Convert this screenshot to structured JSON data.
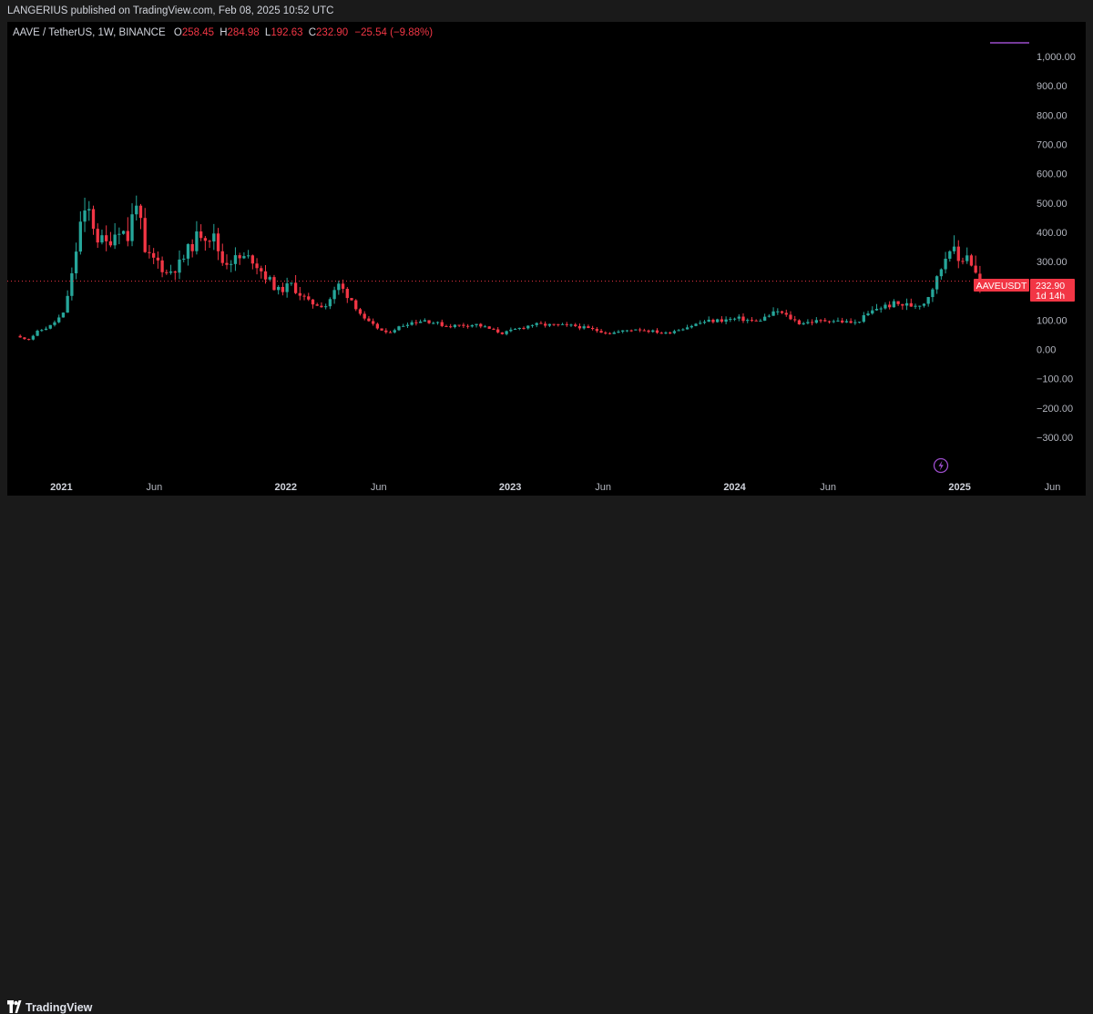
{
  "header": {
    "publish_line": "LANGERIUS published on TradingView.com, Feb 08, 2025 10:52 UTC"
  },
  "legend": {
    "symbol": "AAVE / TetherUS, 1W, BINANCE",
    "o_label": "O",
    "o_value": "258.45",
    "h_label": "H",
    "h_value": "284.98",
    "l_label": "L",
    "l_value": "192.63",
    "c_label": "C",
    "c_value": "232.90",
    "change": "−25.54 (−9.88%)"
  },
  "price_tag": {
    "symbol": "AAVEUSDT",
    "price": "232.90",
    "countdown": "1d 14h"
  },
  "footer": {
    "brand": "TradingView"
  },
  "colors": {
    "up": "#26a69a",
    "down": "#f23645",
    "axis_text": "#b2b5be",
    "guide": "#9c4dcc"
  },
  "icons": {
    "logo": "tradingview-logo-icon",
    "lightning": "lightning-icon"
  },
  "chart_data": {
    "type": "candlestick",
    "title": "AAVE / TetherUS, 1W, BINANCE",
    "xlabel": "",
    "ylabel": "",
    "y_scale": "linear",
    "ylim": [
      -350,
      1050
    ],
    "x_range": [
      "2020-10-05",
      "2025-07-25"
    ],
    "grid": false,
    "y_ticks": [
      {
        "value": 1000,
        "label": "1,000.00"
      },
      {
        "value": 900,
        "label": "900.00"
      },
      {
        "value": 800,
        "label": "800.00"
      },
      {
        "value": 700,
        "label": "700.00"
      },
      {
        "value": 600,
        "label": "600.00"
      },
      {
        "value": 500,
        "label": "500.00"
      },
      {
        "value": 400,
        "label": "400.00"
      },
      {
        "value": 300,
        "label": "300.00"
      },
      {
        "value": 100,
        "label": "100.00"
      },
      {
        "value": 0,
        "label": "0.00"
      },
      {
        "value": -100,
        "label": "−100.00"
      },
      {
        "value": -200,
        "label": "−200.00"
      },
      {
        "value": -300,
        "label": "−300.00"
      }
    ],
    "x_ticks": [
      {
        "date": "2021-01-01",
        "label": "2021",
        "bold": true
      },
      {
        "date": "2021-06-01",
        "label": "Jun",
        "bold": false
      },
      {
        "date": "2022-01-01",
        "label": "2022",
        "bold": true
      },
      {
        "date": "2022-06-01",
        "label": "Jun",
        "bold": false
      },
      {
        "date": "2023-01-01",
        "label": "2023",
        "bold": true
      },
      {
        "date": "2023-06-01",
        "label": "Jun",
        "bold": false
      },
      {
        "date": "2024-01-01",
        "label": "2024",
        "bold": true
      },
      {
        "date": "2024-06-01",
        "label": "Jun",
        "bold": false
      },
      {
        "date": "2025-01-01",
        "label": "2025",
        "bold": true
      },
      {
        "date": "2025-06-01",
        "label": "Jun",
        "bold": false
      }
    ],
    "last_price": 232.9,
    "anchors": [
      {
        "date": "2020-10-26",
        "close": 40
      },
      {
        "date": "2020-11-09",
        "close": 35
      },
      {
        "date": "2020-11-23",
        "close": 60
      },
      {
        "date": "2020-12-14",
        "close": 80
      },
      {
        "date": "2021-01-04",
        "close": 120
      },
      {
        "date": "2021-01-18",
        "close": 250
      },
      {
        "date": "2021-02-01",
        "close": 430
      },
      {
        "date": "2021-02-15",
        "close": 470
      },
      {
        "date": "2021-03-01",
        "close": 380
      },
      {
        "date": "2021-03-15",
        "close": 360
      },
      {
        "date": "2021-04-05",
        "close": 420
      },
      {
        "date": "2021-04-19",
        "close": 380
      },
      {
        "date": "2021-05-03",
        "close": 520
      },
      {
        "date": "2021-05-17",
        "close": 320
      },
      {
        "date": "2021-06-07",
        "close": 300
      },
      {
        "date": "2021-06-21",
        "close": 260
      },
      {
        "date": "2021-07-12",
        "close": 290
      },
      {
        "date": "2021-08-02",
        "close": 360
      },
      {
        "date": "2021-08-16",
        "close": 400
      },
      {
        "date": "2021-09-06",
        "close": 380
      },
      {
        "date": "2021-09-20",
        "close": 300
      },
      {
        "date": "2021-10-18",
        "close": 310
      },
      {
        "date": "2021-11-08",
        "close": 310
      },
      {
        "date": "2021-11-29",
        "close": 250
      },
      {
        "date": "2021-12-20",
        "close": 200
      },
      {
        "date": "2022-01-10",
        "close": 220
      },
      {
        "date": "2022-02-07",
        "close": 160
      },
      {
        "date": "2022-03-07",
        "close": 150
      },
      {
        "date": "2022-03-28",
        "close": 220
      },
      {
        "date": "2022-04-18",
        "close": 170
      },
      {
        "date": "2022-05-09",
        "close": 100
      },
      {
        "date": "2022-06-13",
        "close": 55
      },
      {
        "date": "2022-07-18",
        "close": 90
      },
      {
        "date": "2022-08-15",
        "close": 100
      },
      {
        "date": "2022-09-19",
        "close": 80
      },
      {
        "date": "2022-11-07",
        "close": 85
      },
      {
        "date": "2022-12-19",
        "close": 55
      },
      {
        "date": "2023-02-06",
        "close": 85
      },
      {
        "date": "2023-04-17",
        "close": 80
      },
      {
        "date": "2023-06-12",
        "close": 55
      },
      {
        "date": "2023-07-24",
        "close": 70
      },
      {
        "date": "2023-09-11",
        "close": 55
      },
      {
        "date": "2023-11-13",
        "close": 95
      },
      {
        "date": "2024-01-08",
        "close": 105
      },
      {
        "date": "2024-02-05",
        "close": 95
      },
      {
        "date": "2024-03-11",
        "close": 130
      },
      {
        "date": "2024-04-15",
        "close": 90
      },
      {
        "date": "2024-06-03",
        "close": 100
      },
      {
        "date": "2024-07-15",
        "close": 90
      },
      {
        "date": "2024-08-19",
        "close": 140
      },
      {
        "date": "2024-09-16",
        "close": 155
      },
      {
        "date": "2024-10-14",
        "close": 150
      },
      {
        "date": "2024-11-04",
        "close": 160
      },
      {
        "date": "2024-11-25",
        "close": 240
      },
      {
        "date": "2024-12-16",
        "close": 360
      },
      {
        "date": "2024-12-30",
        "close": 300
      },
      {
        "date": "2025-01-13",
        "close": 330
      },
      {
        "date": "2025-01-27",
        "close": 258
      },
      {
        "date": "2025-02-03",
        "close": 232.9
      }
    ]
  }
}
